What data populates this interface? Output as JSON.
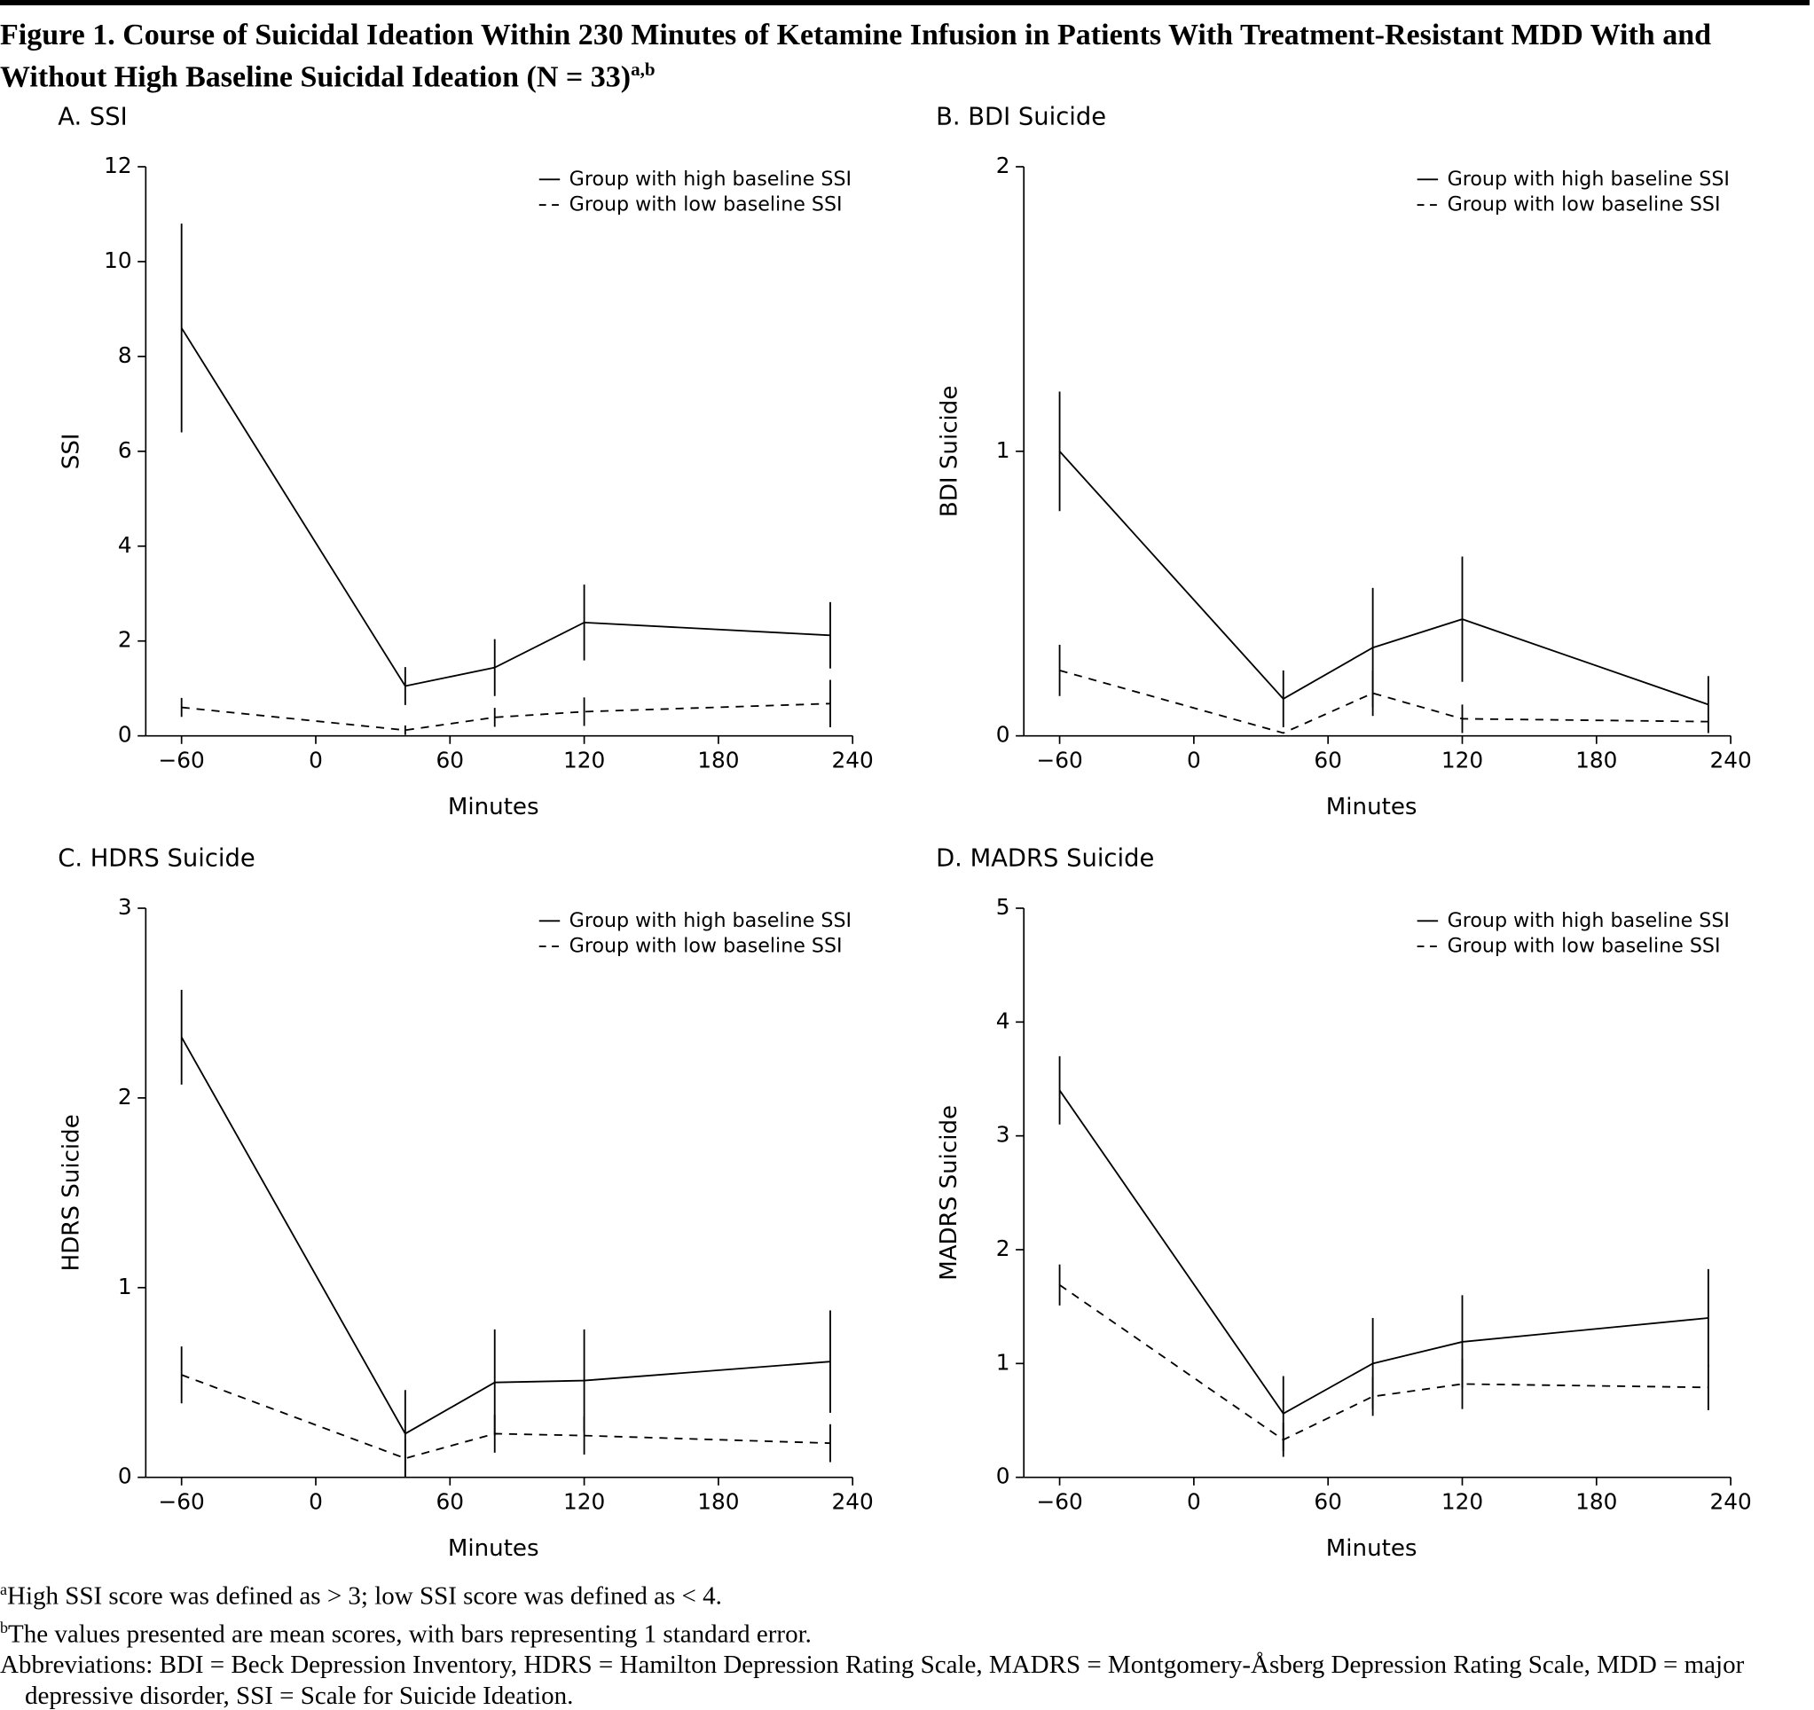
{
  "title": "Figure 1. Course of Suicidal Ideation Within 230 Minutes of Ketamine Infusion in Patients With Treatment-Resistant MDD With and Without High Baseline Suicidal Ideation (N = 33)",
  "title_superscript": "a,b",
  "footnotes": [
    {
      "mark": "a",
      "text": "High SSI score was defined as > 3; low SSI score was defined as < 4."
    },
    {
      "mark": "b",
      "text": "The values presented are mean scores, with bars representing 1 standard error."
    }
  ],
  "abbreviations": "Abbreviations: BDI = Beck Depression Inventory, HDRS = Hamilton Depression Rating Scale, MADRS = Montgomery-Åsberg Depression Rating Scale, MDD = major depressive disorder, SSI = Scale for Suicide Ideation.",
  "chart_data": [
    {
      "type": "line",
      "title": "A. SSI",
      "ylabel": "SSI",
      "xlabel": "Minutes",
      "legend": "top-right",
      "x": [
        -60,
        40,
        80,
        120,
        230
      ],
      "xlim": [
        -76,
        240
      ],
      "xticks": [
        {
          "value": -60,
          "label": "−60"
        },
        0,
        60,
        120,
        180,
        240
      ],
      "ylim": [
        0,
        12
      ],
      "yticks": [
        0,
        2,
        4,
        6,
        8,
        10,
        12
      ],
      "series": [
        {
          "name": "Group with high baseline SSI",
          "color": "#000000",
          "line_style": "solid",
          "values": [
            8.6,
            1.05,
            1.44,
            2.39,
            2.12
          ],
          "errors": [
            2.2,
            0.4,
            0.6,
            0.8,
            0.7
          ]
        },
        {
          "name": "Group with low baseline SSI",
          "color": "#000000",
          "line_style": "dashed",
          "values": [
            0.6,
            0.12,
            0.39,
            0.51,
            0.68
          ],
          "errors": [
            0.2,
            0.1,
            0.2,
            0.3,
            0.5
          ]
        }
      ]
    },
    {
      "type": "line",
      "title": "B. BDI Suicide",
      "ylabel": "BDI Suicide",
      "xlabel": "Minutes",
      "legend": "top-right",
      "x": [
        -60,
        40,
        80,
        120,
        230
      ],
      "xlim": [
        -76,
        240
      ],
      "xticks": [
        {
          "value": -60,
          "label": "−60"
        },
        0,
        60,
        120,
        180,
        240
      ],
      "ylim": [
        0,
        2
      ],
      "yticks": [
        0,
        1,
        2
      ],
      "series": [
        {
          "name": "Group with high baseline SSI",
          "color": "#000000",
          "line_style": "solid",
          "values": [
            1.0,
            0.13,
            0.31,
            0.41,
            0.11
          ],
          "errors": [
            0.21,
            0.1,
            0.21,
            0.22,
            0.1
          ]
        },
        {
          "name": "Group with low baseline SSI",
          "color": "#000000",
          "line_style": "dashed",
          "values": [
            0.23,
            0.01,
            0.15,
            0.06,
            0.05
          ],
          "errors": [
            0.09,
            0,
            0.08,
            0.05,
            0
          ]
        }
      ]
    },
    {
      "type": "line",
      "title": "C. HDRS Suicide",
      "ylabel": "HDRS Suicide",
      "xlabel": "Minutes",
      "legend": "top-right",
      "x": [
        -60,
        40,
        80,
        120,
        230
      ],
      "xlim": [
        -76,
        240
      ],
      "xticks": [
        {
          "value": -60,
          "label": "−60"
        },
        0,
        60,
        120,
        180,
        240
      ],
      "ylim": [
        0,
        3
      ],
      "yticks": [
        0,
        1,
        2,
        3
      ],
      "series": [
        {
          "name": "Group with high baseline SSI",
          "color": "#000000",
          "line_style": "solid",
          "values": [
            2.32,
            0.23,
            0.5,
            0.51,
            0.61
          ],
          "errors": [
            0.25,
            0.23,
            0.28,
            0.27,
            0.27
          ]
        },
        {
          "name": "Group with low baseline SSI",
          "color": "#000000",
          "line_style": "dashed",
          "values": [
            0.54,
            0.1,
            0.23,
            0.22,
            0.18
          ],
          "errors": [
            0.15,
            0.1,
            0.1,
            0.1,
            0.1
          ]
        }
      ]
    },
    {
      "type": "line",
      "title": "D. MADRS Suicide",
      "ylabel": "MADRS Suicide",
      "xlabel": "Minutes",
      "legend": "top-right",
      "x": [
        -60,
        40,
        80,
        120,
        230
      ],
      "xlim": [
        -76,
        240
      ],
      "xticks": [
        {
          "value": -60,
          "label": "−60"
        },
        0,
        60,
        120,
        180,
        240
      ],
      "ylim": [
        0,
        5
      ],
      "yticks": [
        0,
        1,
        2,
        3,
        4,
        5
      ],
      "series": [
        {
          "name": "Group with high baseline SSI",
          "color": "#000000",
          "line_style": "solid",
          "values": [
            3.4,
            0.56,
            1.0,
            1.19,
            1.4
          ],
          "errors": [
            0.3,
            0.33,
            0.4,
            0.41,
            0.43
          ]
        },
        {
          "name": "Group with low baseline SSI",
          "color": "#000000",
          "line_style": "dashed",
          "values": [
            1.69,
            0.33,
            0.71,
            0.82,
            0.79
          ],
          "errors": [
            0.18,
            0.15,
            0.17,
            0.22,
            0.2
          ]
        }
      ]
    }
  ]
}
